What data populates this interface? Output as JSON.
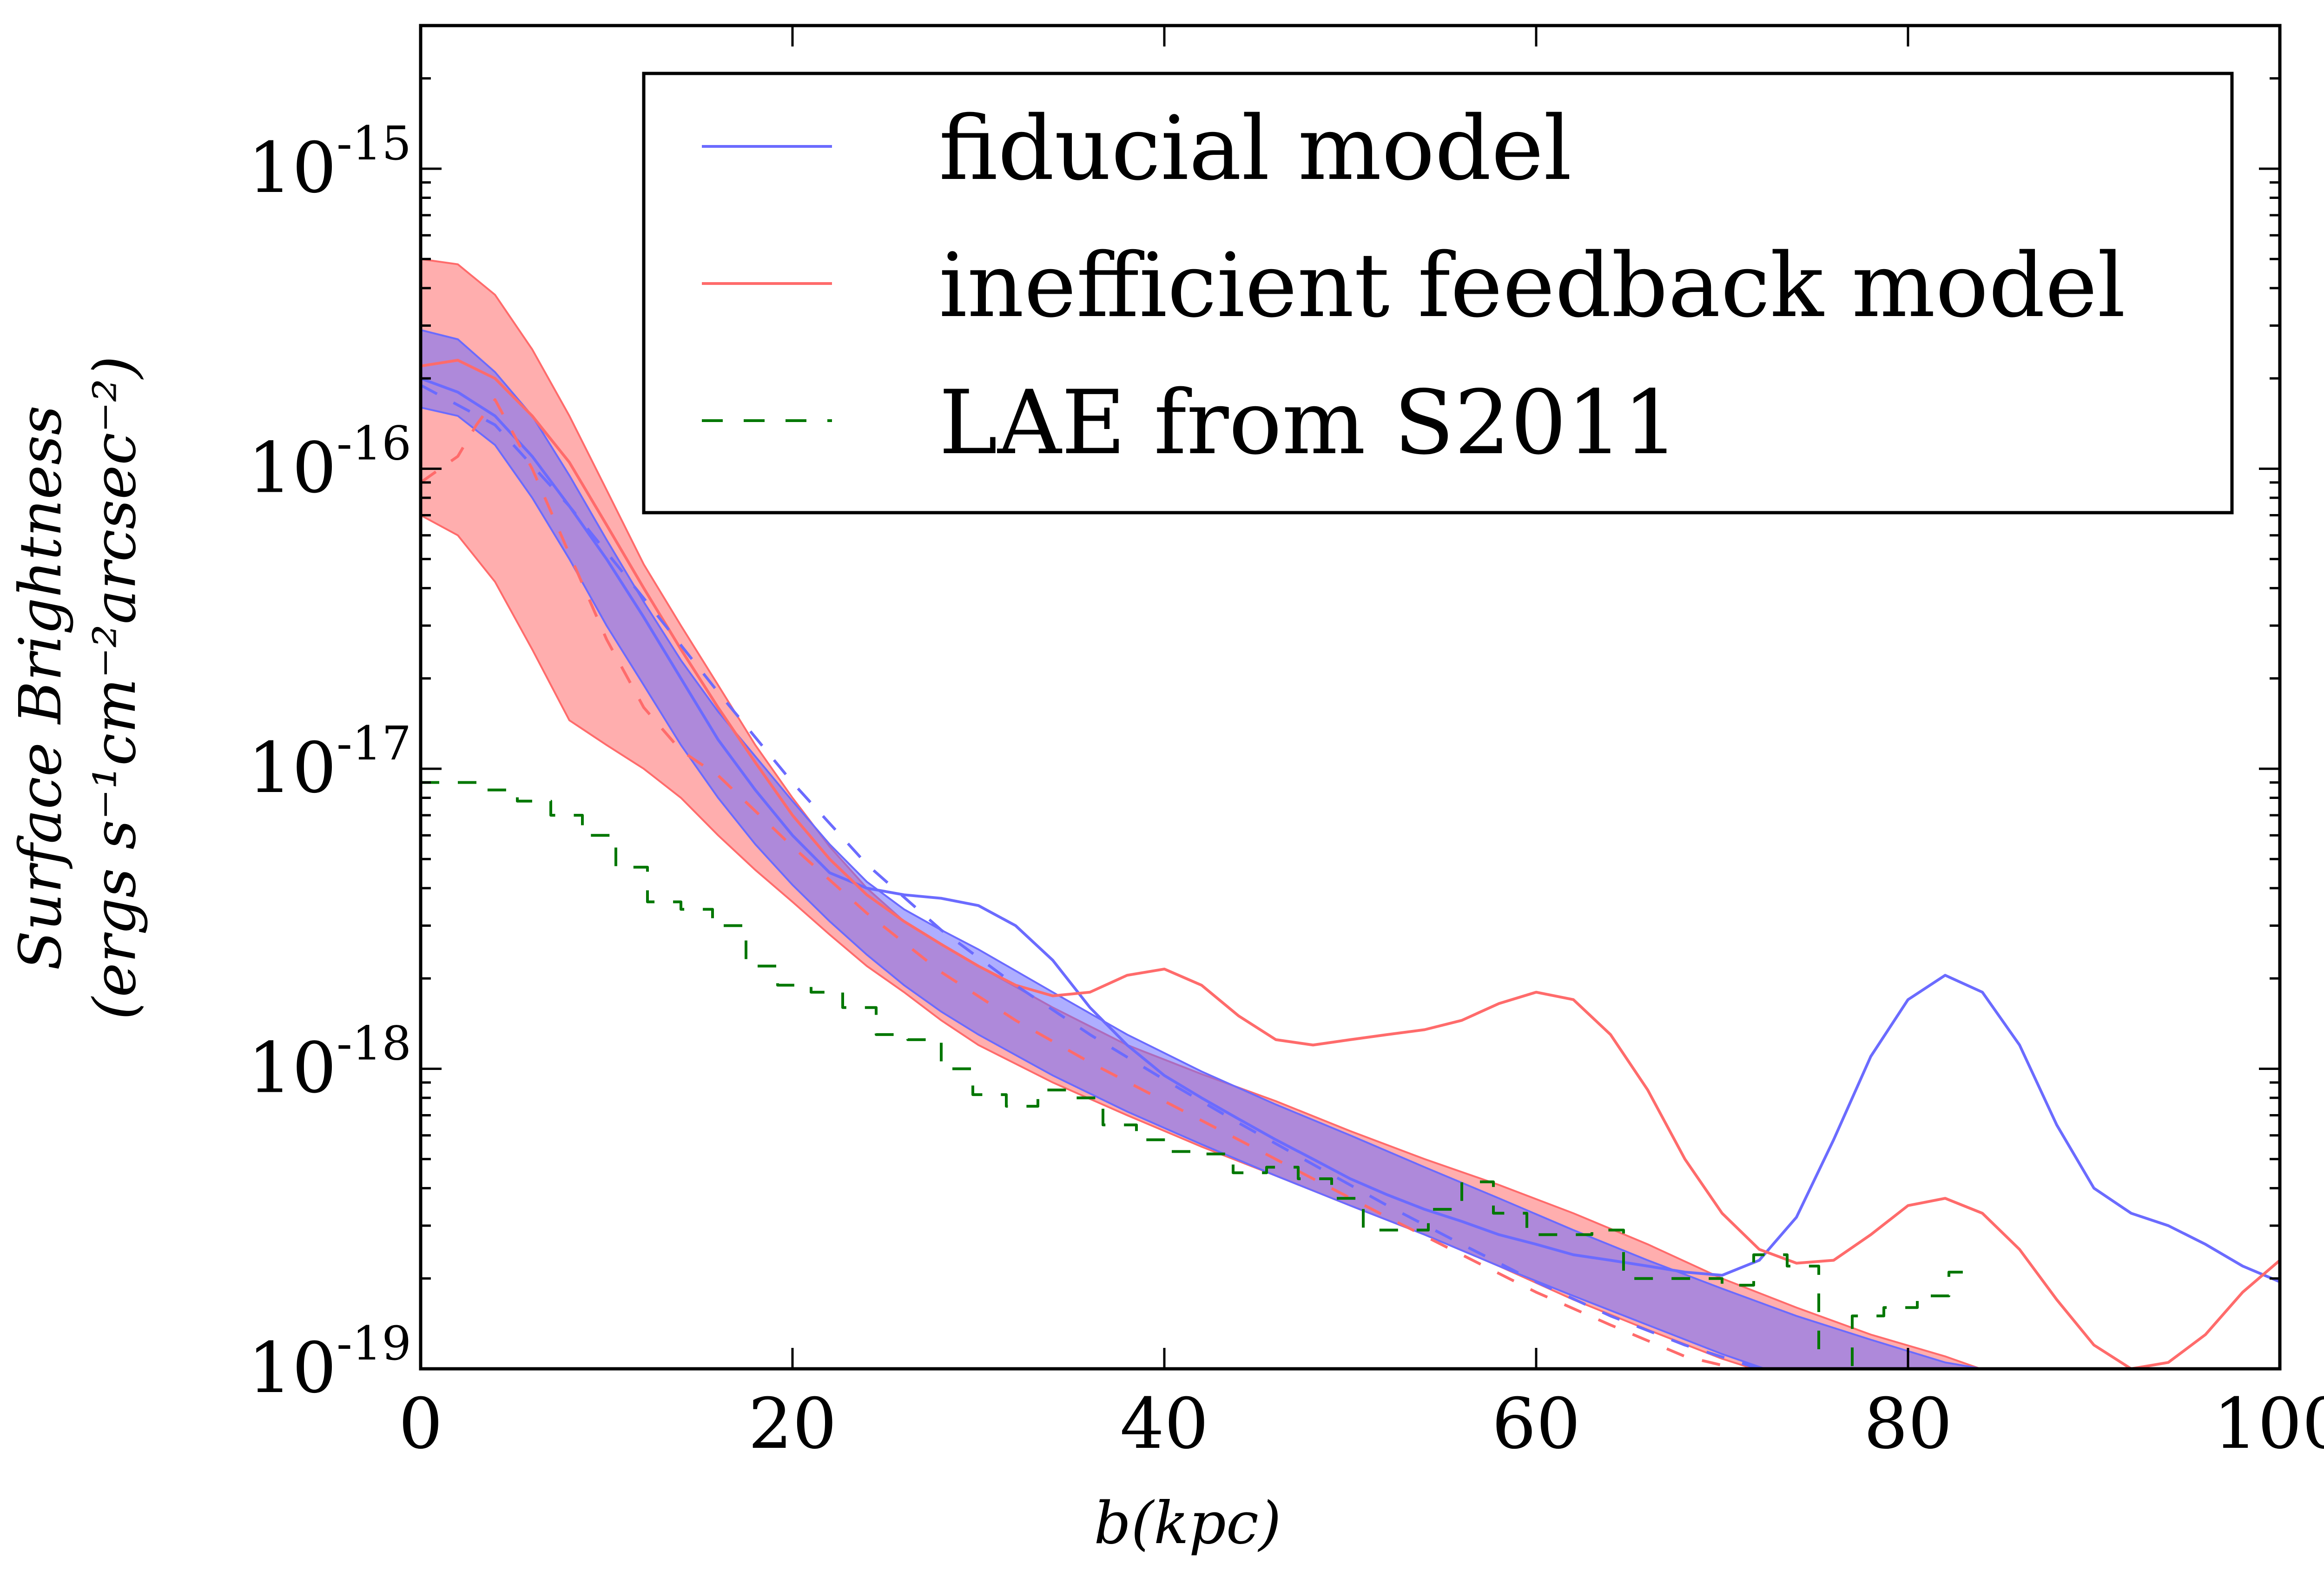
{
  "chart_data": {
    "type": "line",
    "title": "",
    "xlabel": "b(kpc)",
    "ylabel": [
      "Surface Brightness",
      "(ergs s⁻¹cm⁻²arcsec⁻²)"
    ],
    "xlim": [
      0,
      100
    ],
    "ylim": [
      1e-19,
      3e-15
    ],
    "yscale": "log",
    "xticks": [
      0,
      20,
      40,
      60,
      80,
      100
    ],
    "xtick_labels": [
      "0",
      "20",
      "40",
      "60",
      "80",
      "100"
    ],
    "yticks": [
      {
        "value": 1e-19,
        "base": "10",
        "exp": "-19"
      },
      {
        "value": 1e-18,
        "base": "10",
        "exp": "-18"
      },
      {
        "value": 1e-17,
        "base": "10",
        "exp": "-17"
      },
      {
        "value": 1e-16,
        "base": "10",
        "exp": "-16"
      },
      {
        "value": 1e-15,
        "base": "10",
        "exp": "-15"
      }
    ],
    "legend_position": "top-right",
    "colors": {
      "fiducial": "#6b6bff",
      "inefficient": "#ff6b6b",
      "lae": "#007700",
      "purple_band": "#c06fb2"
    },
    "series": [
      {
        "name": "fiducial model",
        "style": "solid",
        "color": "#6b6bff",
        "x": [
          0,
          2,
          4,
          6,
          8,
          10,
          12,
          14,
          16,
          18,
          20,
          22,
          24,
          26,
          28,
          30,
          32,
          34,
          36,
          38,
          40,
          42,
          44,
          46,
          48,
          50,
          52,
          54,
          56,
          58,
          60,
          62,
          64,
          66,
          68,
          70,
          72,
          74,
          76,
          78,
          80,
          82,
          84,
          86,
          88,
          90,
          92,
          94,
          96,
          98,
          100
        ],
        "y": [
          2e-16,
          1.8e-16,
          1.5e-16,
          1.1e-16,
          7.5e-17,
          5e-17,
          3.2e-17,
          2e-17,
          1.25e-17,
          8.5e-18,
          6e-18,
          4.5e-18,
          4e-18,
          3.8e-18,
          3.7e-18,
          3.5e-18,
          3e-18,
          2.3e-18,
          1.6e-18,
          1.2e-18,
          9.5e-19,
          8e-19,
          6.8e-19,
          5.8e-19,
          5e-19,
          4.3e-19,
          3.8e-19,
          3.4e-19,
          3.1e-19,
          2.8e-19,
          2.6e-19,
          2.4e-19,
          2.3e-19,
          2.2e-19,
          2.1e-19,
          2.05e-19,
          2.3e-19,
          3.2e-19,
          5.8e-19,
          1.1e-18,
          1.7e-18,
          2.05e-18,
          1.8e-18,
          1.2e-18,
          6.5e-19,
          4e-19,
          3.3e-19,
          3e-19,
          2.6e-19,
          2.2e-19,
          1.95e-19
        ]
      },
      {
        "name": "inefficient feedback model",
        "style": "solid",
        "color": "#ff6b6b",
        "x": [
          0,
          2,
          4,
          6,
          8,
          10,
          12,
          14,
          16,
          18,
          20,
          22,
          24,
          26,
          28,
          30,
          32,
          34,
          36,
          38,
          40,
          42,
          44,
          46,
          48,
          50,
          52,
          54,
          56,
          58,
          60,
          62,
          64,
          66,
          68,
          70,
          72,
          74,
          76,
          78,
          80,
          82,
          84,
          86,
          88,
          90,
          92,
          94,
          96,
          98,
          100
        ],
        "y": [
          2.2e-16,
          2.3e-16,
          2e-16,
          1.5e-16,
          1.05e-16,
          6.5e-17,
          4e-17,
          2.5e-17,
          1.6e-17,
          1.05e-17,
          7e-18,
          5e-18,
          3.8e-18,
          3.1e-18,
          2.6e-18,
          2.2e-18,
          1.9e-18,
          1.75e-18,
          1.8e-18,
          2.05e-18,
          2.15e-18,
          1.9e-18,
          1.5e-18,
          1.25e-18,
          1.2e-18,
          1.25e-18,
          1.3e-18,
          1.35e-18,
          1.45e-18,
          1.65e-18,
          1.8e-18,
          1.7e-18,
          1.3e-18,
          8.5e-19,
          5e-19,
          3.3e-19,
          2.5e-19,
          2.25e-19,
          2.3e-19,
          2.8e-19,
          3.5e-19,
          3.7e-19,
          3.3e-19,
          2.5e-19,
          1.7e-19,
          1.2e-19,
          1e-19,
          1.05e-19,
          1.3e-19,
          1.8e-19,
          2.3e-19
        ]
      },
      {
        "name": "fiducial model (dashed)",
        "style": "dashed",
        "color": "#6b6bff",
        "x": [
          0,
          4,
          8,
          12,
          16,
          20,
          24,
          28,
          32,
          36,
          40,
          44,
          48,
          52,
          56,
          60,
          64,
          68,
          72,
          74
        ],
        "y": [
          1.9e-16,
          1.4e-16,
          7.5e-17,
          3.7e-17,
          1.8e-17,
          9e-18,
          4.8e-18,
          2.9e-18,
          1.9e-18,
          1.3e-18,
          9.2e-19,
          6.6e-19,
          4.8e-19,
          3.5e-19,
          2.6e-19,
          1.95e-19,
          1.5e-19,
          1.2e-19,
          1e-19,
          9.4e-20
        ]
      },
      {
        "name": "inefficient feedback model (dashed)",
        "style": "dashed",
        "color": "#ff6b6b",
        "x": [
          0,
          2,
          3,
          4,
          6,
          8,
          10,
          12,
          14,
          16,
          20,
          24,
          28,
          32,
          36,
          40,
          44,
          48,
          52,
          56,
          60,
          64,
          68,
          72,
          74
        ],
        "y": [
          9e-17,
          1.1e-16,
          1.4e-16,
          1.7e-16,
          1e-16,
          5.2e-17,
          2.7e-17,
          1.6e-17,
          1.15e-17,
          9.5e-18,
          5.5e-18,
          3.3e-18,
          2.1e-18,
          1.45e-18,
          1.05e-18,
          7.8e-19,
          5.8e-19,
          4.3e-19,
          3.2e-19,
          2.4e-19,
          1.8e-19,
          1.4e-19,
          1.1e-19,
          9.6e-20,
          9e-20
        ]
      },
      {
        "name": "LAE from S2011",
        "style": "dashed-step",
        "color": "#007700",
        "x": [
          0,
          3.5,
          5.2,
          7.0,
          8.7,
          10.5,
          12.2,
          14.0,
          15.7,
          17.5,
          19.2,
          21.0,
          22.7,
          24.5,
          26.2,
          28.0,
          29.7,
          31.5,
          33.2,
          35.0,
          36.7,
          38.5,
          40.2,
          42.0,
          43.7,
          45.5,
          47.2,
          49.0,
          50.7,
          52.5,
          54.2,
          56.0,
          57.7,
          59.5,
          61.2,
          63.0,
          64.7,
          66.5,
          68.2,
          70.0,
          71.7,
          73.5,
          75.2,
          77.0,
          78.7,
          80.5,
          82.2
        ],
        "y": [
          9e-18,
          8.5e-18,
          7.8e-18,
          7e-18,
          6e-18,
          4.7e-18,
          3.6e-18,
          3.4e-18,
          3e-18,
          2.2e-18,
          1.9e-18,
          1.8e-18,
          1.6e-18,
          1.3e-18,
          1.25e-18,
          1e-18,
          8.2e-19,
          7.5e-19,
          8.5e-19,
          8e-19,
          6.5e-19,
          5.8e-19,
          5.3e-19,
          5.2e-19,
          4.5e-19,
          4.7e-19,
          4.3e-19,
          3.7e-19,
          2.9e-19,
          2.9e-19,
          3.4e-19,
          4.2e-19,
          3.3e-19,
          2.8e-19,
          2.8e-19,
          2.9e-19,
          2e-19,
          2e-19,
          2e-19,
          1.9e-19,
          2.4e-19,
          2.2e-19,
          1e-19,
          1.5e-19,
          1.6e-19,
          1.75e-19,
          2.1e-19
        ]
      }
    ],
    "bands": [
      {
        "name": "inefficient feedback model range",
        "color": "#ff6b6b",
        "opacity": 0.55,
        "x": [
          0,
          2,
          4,
          6,
          8,
          10,
          12,
          14,
          16,
          18,
          20,
          22,
          24,
          26,
          28,
          30,
          34,
          38,
          42,
          46,
          50,
          54,
          58,
          62,
          66,
          70,
          74,
          78,
          82,
          86
        ],
        "upper": [
          5e-16,
          4.8e-16,
          3.8e-16,
          2.5e-16,
          1.5e-16,
          8.5e-17,
          4.8e-17,
          3e-17,
          1.9e-17,
          1.2e-17,
          8e-18,
          5.5e-18,
          4e-18,
          3.1e-18,
          2.6e-18,
          2.2e-18,
          1.6e-18,
          1.2e-18,
          9.6e-19,
          7.8e-19,
          6.2e-19,
          5e-19,
          4.1e-19,
          3.3e-19,
          2.6e-19,
          2e-19,
          1.6e-19,
          1.3e-19,
          1.1e-19,
          9e-20
        ],
        "lower": [
          7e-17,
          6e-17,
          4.2e-17,
          2.5e-17,
          1.45e-17,
          1.2e-17,
          1e-17,
          8e-18,
          6e-18,
          4.6e-18,
          3.6e-18,
          2.8e-18,
          2.2e-18,
          1.8e-18,
          1.45e-18,
          1.2e-18,
          9e-19,
          7e-19,
          5.5e-19,
          4.4e-19,
          3.5e-19,
          2.8e-19,
          2.2e-19,
          1.7e-19,
          1.35e-19,
          1.08e-19,
          9e-20,
          8e-20,
          7.5e-20,
          7e-20
        ]
      },
      {
        "name": "fiducial model range",
        "color": "#6b6bff",
        "opacity": 0.55,
        "x": [
          0,
          2,
          4,
          6,
          8,
          10,
          12,
          14,
          16,
          18,
          20,
          22,
          24,
          26,
          28,
          30,
          34,
          38,
          42,
          46,
          50,
          54,
          58,
          62,
          66,
          70,
          74,
          78,
          82,
          84
        ],
        "upper": [
          2.9e-16,
          2.7e-16,
          2.1e-16,
          1.5e-16,
          9.5e-17,
          5.8e-17,
          3.6e-17,
          2.3e-17,
          1.55e-17,
          1.1e-17,
          7.8e-18,
          5.6e-18,
          4.2e-18,
          3.4e-18,
          2.9e-18,
          2.5e-18,
          1.8e-18,
          1.3e-18,
          9.8e-19,
          7.6e-19,
          6e-19,
          4.7e-19,
          3.7e-19,
          2.9e-19,
          2.3e-19,
          1.85e-19,
          1.5e-19,
          1.25e-19,
          1.05e-19,
          1e-19
        ],
        "lower": [
          1.6e-16,
          1.5e-16,
          1.2e-16,
          8e-17,
          5e-17,
          3e-17,
          1.9e-17,
          1.2e-17,
          8e-18,
          5.6e-18,
          4.1e-18,
          3.1e-18,
          2.4e-18,
          1.9e-18,
          1.55e-18,
          1.3e-18,
          9.5e-19,
          7.2e-19,
          5.6e-19,
          4.4e-19,
          3.5e-19,
          2.8e-19,
          2.2e-19,
          1.75e-19,
          1.4e-19,
          1.12e-19,
          9.2e-20,
          8e-20,
          7.2e-20,
          7e-20
        ]
      }
    ],
    "legend": [
      {
        "label": "fiducial model",
        "color": "#6b6bff",
        "style": "solid"
      },
      {
        "label": "inefficient feedback model",
        "color": "#ff6b6b",
        "style": "solid"
      },
      {
        "label": "LAE from S2011",
        "color": "#007700",
        "style": "dashed"
      }
    ]
  }
}
